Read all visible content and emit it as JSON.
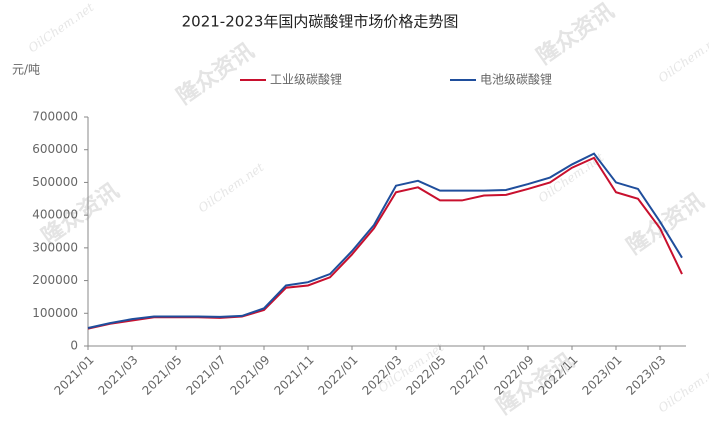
{
  "chart_data": {
    "type": "line",
    "title": "2021-2023年国内碳酸锂市场价格走势图",
    "y_unit": "元/吨",
    "watermarks": [
      "隆众资讯",
      "OilChem.net"
    ],
    "x": [
      "2021/01",
      "2021/02",
      "2021/03",
      "2021/04",
      "2021/05",
      "2021/06",
      "2021/07",
      "2021/08",
      "2021/09",
      "2021/10",
      "2021/11",
      "2021/12",
      "2022/01",
      "2022/02",
      "2022/03",
      "2022/04",
      "2022/05",
      "2022/06",
      "2022/07",
      "2022/08",
      "2022/09",
      "2022/10",
      "2022/11",
      "2022/12",
      "2023/01",
      "2023/02",
      "2023/03",
      "2023/04"
    ],
    "series": [
      {
        "name": "工业级碳酸锂",
        "color": "#c8102e",
        "values": [
          53000,
          68000,
          78000,
          88000,
          88000,
          88000,
          86000,
          90000,
          110000,
          178000,
          185000,
          210000,
          280000,
          360000,
          470000,
          485000,
          445000,
          445000,
          460000,
          462000,
          480000,
          500000,
          545000,
          575000,
          470000,
          450000,
          360000,
          220000
        ]
      },
      {
        "name": "电池级碳酸锂",
        "color": "#1f4e9c",
        "values": [
          55000,
          70000,
          82000,
          90000,
          90000,
          90000,
          89000,
          92000,
          115000,
          185000,
          195000,
          220000,
          290000,
          370000,
          490000,
          505000,
          475000,
          475000,
          475000,
          477000,
          495000,
          515000,
          555000,
          588000,
          500000,
          480000,
          380000,
          270000
        ]
      }
    ],
    "ylim": [
      0,
      700000
    ],
    "yticks": [
      0,
      100000,
      200000,
      300000,
      400000,
      500000,
      600000,
      700000
    ],
    "xticks": [
      "2021/01",
      "2021/03",
      "2021/05",
      "2021/07",
      "2021/09",
      "2021/11",
      "2022/01",
      "2022/03",
      "2022/05",
      "2022/07",
      "2022/09",
      "2022/11",
      "2023/01",
      "2023/03"
    ]
  }
}
